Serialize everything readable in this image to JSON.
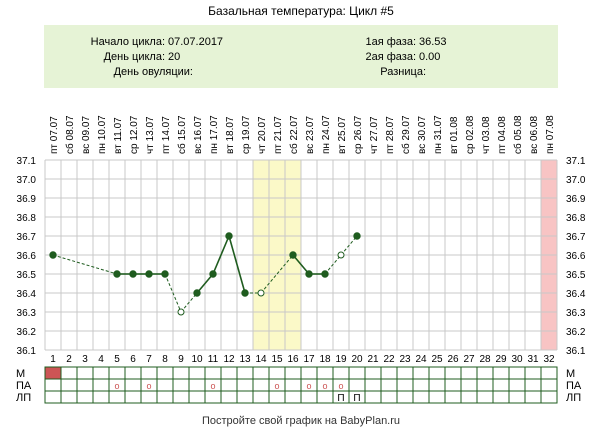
{
  "title": "Базальная температура: Цикл #5",
  "info": {
    "cycle_start_label": "Начало цикла:",
    "cycle_start_value": "07.07.2017",
    "cycle_day_label": "День цикла:",
    "cycle_day_value": "20",
    "ovulation_day_label": "День овуляции:",
    "ovulation_day_value": "",
    "phase1_label": "1ая фаза:",
    "phase1_value": "36.53",
    "phase2_label": "2ая фаза:",
    "phase2_value": "0.00",
    "difference_label": "Разница:",
    "difference_value": ""
  },
  "footer": "Постройте свой график на BabyPlan.ru",
  "row_labels": {
    "m": "М",
    "pa": "ПА",
    "lp": "ЛП"
  },
  "colors": {
    "info_bg": "#e6f3d6",
    "highlight": "#fbf9c8",
    "end_highlight": "#f8c4c4",
    "line": "#1f5c1f",
    "grid": "#c8c8c8",
    "mark_red": "#cc5555"
  },
  "chart_data": {
    "type": "line",
    "ylim": [
      36.1,
      37.1
    ],
    "yticks": [
      "36.1",
      "36.2",
      "36.3",
      "36.4",
      "36.5",
      "36.6",
      "36.7",
      "36.8",
      "36.9",
      "37.0",
      "37.1"
    ],
    "days": [
      "1",
      "2",
      "3",
      "4",
      "5",
      "6",
      "7",
      "8",
      "9",
      "10",
      "11",
      "12",
      "13",
      "14",
      "15",
      "16",
      "17",
      "18",
      "19",
      "20",
      "21",
      "22",
      "23",
      "24",
      "25",
      "26",
      "27",
      "28",
      "29",
      "30",
      "31",
      "32"
    ],
    "dates": [
      "пт 07.07",
      "сб 08.07",
      "вс 09.07",
      "пн 10.07",
      "вт 11.07",
      "ср 12.07",
      "чт 13.07",
      "пт 14.07",
      "сб 15.07",
      "вс 16.07",
      "пн 17.07",
      "вт 18.07",
      "ср 19.07",
      "чт 20.07",
      "пт 21.07",
      "сб 22.07",
      "вс 23.07",
      "пн 24.07",
      "вт 25.07",
      "ср 26.07",
      "чт 27.07",
      "пт 28.07",
      "сб 29.07",
      "вс 30.07",
      "пн 31.07",
      "вт 01.08",
      "ср 02.08",
      "чт 03.08",
      "пт 04.08",
      "сб 05.08",
      "вс 06.08",
      "пн 07.08"
    ],
    "highlight_days": [
      14,
      15,
      16
    ],
    "end_day": 32,
    "points": [
      {
        "day": 1,
        "temp": 36.6,
        "open": false
      },
      {
        "day": 5,
        "temp": 36.5,
        "open": false
      },
      {
        "day": 6,
        "temp": 36.5,
        "open": false
      },
      {
        "day": 7,
        "temp": 36.5,
        "open": false
      },
      {
        "day": 8,
        "temp": 36.5,
        "open": false
      },
      {
        "day": 9,
        "temp": 36.3,
        "open": true
      },
      {
        "day": 10,
        "temp": 36.4,
        "open": false
      },
      {
        "day": 11,
        "temp": 36.5,
        "open": false
      },
      {
        "day": 12,
        "temp": 36.7,
        "open": false
      },
      {
        "day": 13,
        "temp": 36.4,
        "open": false
      },
      {
        "day": 14,
        "temp": 36.4,
        "open": true
      },
      {
        "day": 16,
        "temp": 36.6,
        "open": false
      },
      {
        "day": 17,
        "temp": 36.5,
        "open": false
      },
      {
        "day": 18,
        "temp": 36.5,
        "open": false
      },
      {
        "day": 19,
        "temp": 36.6,
        "open": true
      },
      {
        "day": 20,
        "temp": 36.7,
        "open": false
      }
    ],
    "menstruation_days": [
      1
    ],
    "pa_marks": [
      {
        "day": 5,
        "symbol": "о"
      },
      {
        "day": 7,
        "symbol": "о"
      },
      {
        "day": 11,
        "symbol": "о"
      },
      {
        "day": 15,
        "symbol": "о"
      },
      {
        "day": 17,
        "symbol": "о"
      },
      {
        "day": 18,
        "symbol": "о"
      },
      {
        "day": 19,
        "symbol": "о"
      }
    ],
    "lp_marks": [
      {
        "day": 19,
        "symbol": "П"
      },
      {
        "day": 20,
        "symbol": "П"
      }
    ]
  }
}
